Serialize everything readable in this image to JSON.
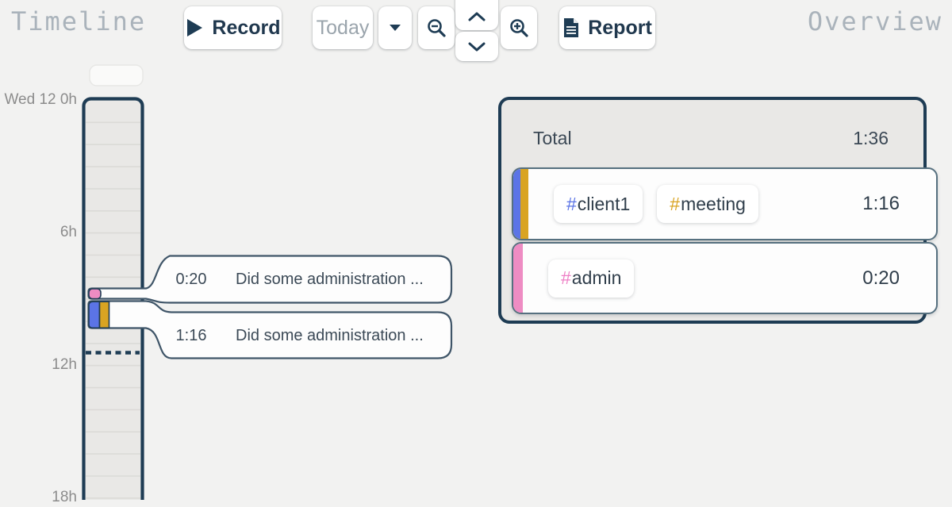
{
  "header": {
    "left_title": "Timeline",
    "right_title": "Overview",
    "record_label": "Record",
    "today_label": "Today",
    "report_label": "Report"
  },
  "timeline": {
    "hour_labels": [
      "Wed 12 0h",
      "6h",
      "12h",
      "18h"
    ],
    "entries": [
      {
        "time": "0:20",
        "description": "Did some administration ...",
        "colors": [
          "#ee8cc3"
        ]
      },
      {
        "time": "1:16",
        "description": "Did some administration ...",
        "colors": [
          "#5b74e6",
          "#d9a422"
        ]
      }
    ]
  },
  "overview": {
    "total_label": "Total",
    "total_time": "1:36",
    "rows": [
      {
        "stripe_colors": [
          "#5b74e6",
          "#d9a422"
        ],
        "tags": [
          {
            "hash": "#",
            "name": "client1",
            "color": "#5b74e6"
          },
          {
            "hash": "#",
            "name": "meeting",
            "color": "#d9a422"
          }
        ],
        "time": "1:16"
      },
      {
        "stripe_colors": [
          "#ee8cc3"
        ],
        "tags": [
          {
            "hash": "#",
            "name": "admin",
            "color": "#ee7fc6"
          }
        ],
        "time": "0:20"
      }
    ]
  },
  "colors": {
    "page_bg": "#f2f2f1",
    "panel_bg": "#e9e8e6",
    "dark_navy": "#1e3c54",
    "bubble_border": "#3f5568",
    "muted_title": "#aab3bb",
    "tag_blue": "#5b74e6",
    "tag_gold": "#d9a422",
    "tag_pink": "#ee8cc3"
  }
}
